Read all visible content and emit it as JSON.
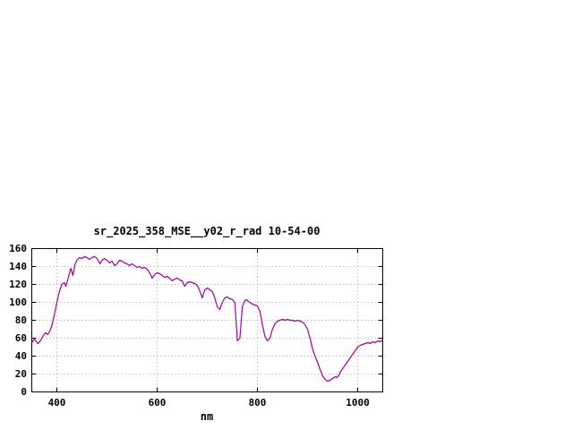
{
  "window": {
    "background": "#ffffff"
  },
  "chart_data": {
    "type": "line",
    "title": "sr_2025_358_MSE__y02_r_rad 10-54-00",
    "xlabel": "nm",
    "ylabel": "",
    "xlim": [
      350,
      1050
    ],
    "ylim": [
      0,
      160
    ],
    "xticks": [
      400,
      600,
      800,
      1000
    ],
    "yticks": [
      0,
      20,
      40,
      60,
      80,
      100,
      120,
      140,
      160
    ],
    "grid": true,
    "grid_color": "#9e9e9e",
    "border_color": "#000000",
    "line_color": "#a000a0",
    "legend": "none",
    "series": [
      {
        "name": "sr_2025_358_MSE__y02_r_rad",
        "x": [
          350,
          355,
          358,
          362,
          366,
          370,
          374,
          378,
          382,
          386,
          390,
          395,
          400,
          405,
          410,
          415,
          418,
          422,
          428,
          432,
          436,
          440,
          445,
          450,
          455,
          460,
          465,
          470,
          475,
          480,
          486,
          490,
          495,
          500,
          505,
          510,
          515,
          520,
          525,
          530,
          535,
          540,
          545,
          550,
          555,
          560,
          565,
          570,
          575,
          580,
          585,
          590,
          595,
          600,
          605,
          610,
          615,
          620,
          625,
          630,
          635,
          640,
          645,
          650,
          655,
          660,
          665,
          670,
          675,
          680,
          687,
          690,
          695,
          700,
          705,
          710,
          715,
          720,
          725,
          730,
          735,
          740,
          745,
          750,
          755,
          760,
          765,
          770,
          775,
          778,
          782,
          790,
          795,
          800,
          805,
          810,
          815,
          820,
          825,
          830,
          835,
          840,
          845,
          850,
          855,
          860,
          865,
          870,
          875,
          880,
          885,
          890,
          895,
          900,
          905,
          910,
          915,
          920,
          925,
          930,
          935,
          940,
          945,
          950,
          955,
          958,
          962,
          965,
          970,
          975,
          980,
          985,
          990,
          995,
          1000,
          1005,
          1010,
          1015,
          1020,
          1025,
          1030,
          1035,
          1040,
          1045,
          1050
        ],
        "y": [
          55,
          59,
          57,
          54,
          56,
          60,
          64,
          66,
          64,
          68,
          74,
          86,
          100,
          112,
          120,
          122,
          118,
          126,
          138,
          130,
          142,
          147,
          150,
          149,
          151,
          150,
          148,
          150,
          151,
          149,
          143,
          147,
          149,
          147,
          144,
          146,
          141,
          143,
          147,
          146,
          144,
          143,
          141,
          143,
          141,
          139,
          140,
          138,
          139,
          137,
          133,
          127,
          131,
          133,
          132,
          130,
          128,
          129,
          127,
          124,
          126,
          127,
          125,
          124,
          118,
          122,
          123,
          122,
          121,
          119,
          110,
          105,
          114,
          116,
          114,
          112,
          105,
          95,
          92,
          100,
          105,
          106,
          104,
          103,
          100,
          57,
          60,
          95,
          102,
          103,
          101,
          98,
          97,
          96,
          90,
          75,
          62,
          57,
          60,
          70,
          76,
          79,
          80,
          81,
          80,
          81,
          80,
          80,
          79,
          80,
          79,
          78,
          75,
          70,
          60,
          48,
          40,
          33,
          25,
          18,
          14,
          12,
          13,
          15,
          17,
          16,
          18,
          22,
          26,
          30,
          34,
          38,
          42,
          46,
          50,
          52,
          53,
          54,
          55,
          54,
          56,
          55,
          57,
          56,
          58
        ]
      }
    ]
  }
}
